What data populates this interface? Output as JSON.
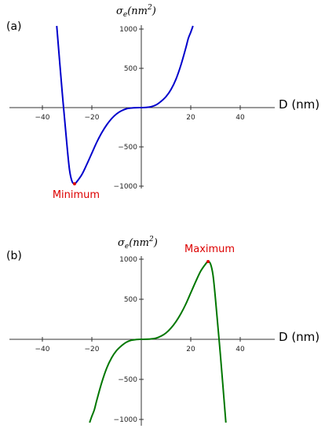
{
  "chart_data": [
    {
      "type": "line",
      "panel_label": "(a)",
      "xlabel": "D (nm)",
      "ylabel_base": "σ",
      "ylabel_sub": "e",
      "ylabel_unit": "(nm",
      "ylabel_exp": "2",
      "ylabel_close": ")",
      "xlim": [
        -52,
        52
      ],
      "ylim": [
        -1040,
        1040
      ],
      "xticks": [
        -40,
        -20,
        20,
        40
      ],
      "xtick_labels": [
        "−40",
        "−20",
        "20",
        "40"
      ],
      "yticks": [
        1000,
        500,
        -500,
        -1000
      ],
      "ytick_labels": [
        "1000",
        "500",
        "−500",
        "−1000"
      ],
      "grid": false,
      "series": [
        {
          "color": "#0000cc",
          "x": [
            -34.2,
            -32,
            -30,
            -29,
            -28,
            -27,
            -26,
            -24,
            -22,
            -20,
            -18,
            -16,
            -14,
            -12,
            -10,
            -8,
            -6,
            -4,
            -2,
            0,
            2,
            4,
            6,
            8,
            10,
            12,
            14,
            16,
            18,
            19,
            20,
            20.9
          ],
          "y": [
            1040,
            200,
            -500,
            -800,
            -940,
            -970,
            -940,
            -850,
            -720,
            -580,
            -440,
            -320,
            -220,
            -140,
            -80,
            -40,
            -15,
            -5,
            -1,
            0,
            2,
            12,
            35,
            80,
            140,
            230,
            360,
            540,
            760,
            880,
            960,
            1040
          ]
        }
      ],
      "annotations": [
        {
          "text": "Minimum",
          "x": -27,
          "y": -970,
          "color": "#dd0000"
        }
      ]
    },
    {
      "type": "line",
      "panel_label": "(b)",
      "xlabel": "D (nm)",
      "ylabel_base": "σ",
      "ylabel_sub": "e",
      "ylabel_unit": "(nm",
      "ylabel_exp": "2",
      "ylabel_close": ")",
      "xlim": [
        -52,
        52
      ],
      "ylim": [
        -1040,
        1040
      ],
      "xticks": [
        -40,
        -20,
        20,
        40
      ],
      "xtick_labels": [
        "−40",
        "−20",
        "20",
        "40"
      ],
      "yticks": [
        1000,
        500,
        -500,
        -1000
      ],
      "ytick_labels": [
        "1000",
        "500",
        "−500",
        "−1000"
      ],
      "grid": false,
      "series": [
        {
          "color": "#007700",
          "x": [
            -20.9,
            -20,
            -19,
            -18,
            -16,
            -14,
            -12,
            -10,
            -8,
            -6,
            -4,
            -2,
            0,
            2,
            4,
            6,
            8,
            10,
            12,
            14,
            16,
            18,
            20,
            22,
            24,
            26,
            27,
            28,
            29,
            30,
            32,
            34.2
          ],
          "y": [
            -1040,
            -960,
            -880,
            -760,
            -540,
            -360,
            -230,
            -140,
            -80,
            -35,
            -12,
            -2,
            0,
            1,
            5,
            15,
            40,
            80,
            140,
            220,
            320,
            440,
            580,
            720,
            850,
            940,
            970,
            940,
            800,
            500,
            -200,
            -1040
          ]
        }
      ],
      "annotations": [
        {
          "text": "Maximum",
          "x": 27,
          "y": 970,
          "color": "#dd0000"
        }
      ]
    }
  ]
}
